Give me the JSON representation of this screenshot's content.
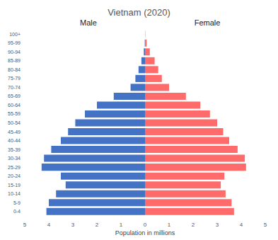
{
  "chart_data": {
    "type": "bar",
    "orientation": "horizontal",
    "title": "Vietnam (2020)",
    "xlabel": "Population in millions",
    "categories": [
      "0-4",
      "5-9",
      "10-14",
      "15-19",
      "20-24",
      "25-29",
      "30-34",
      "35-39",
      "40-44",
      "45-49",
      "50-54",
      "55-59",
      "60-64",
      "65-69",
      "70-74",
      "75-79",
      "80-84",
      "85-89",
      "90-94",
      "95-99",
      "100+"
    ],
    "series": [
      {
        "name": "Male",
        "color": "#4472c4",
        "values": [
          4.1,
          4.0,
          3.7,
          3.3,
          3.5,
          4.3,
          4.2,
          3.9,
          3.5,
          3.2,
          2.9,
          2.5,
          2.0,
          1.3,
          0.6,
          0.4,
          0.27,
          0.15,
          0.05,
          0.01,
          0
        ]
      },
      {
        "name": "Female",
        "color": "#ff6b6b",
        "values": [
          3.7,
          3.6,
          3.35,
          3.15,
          3.3,
          4.2,
          4.15,
          3.85,
          3.5,
          3.25,
          3.0,
          2.7,
          2.3,
          1.7,
          1.0,
          0.7,
          0.55,
          0.4,
          0.2,
          0.07,
          0.01
        ]
      }
    ],
    "xlim": [
      0,
      5
    ],
    "xticks": [
      0,
      1,
      2,
      3,
      4,
      5
    ],
    "grid": false
  }
}
